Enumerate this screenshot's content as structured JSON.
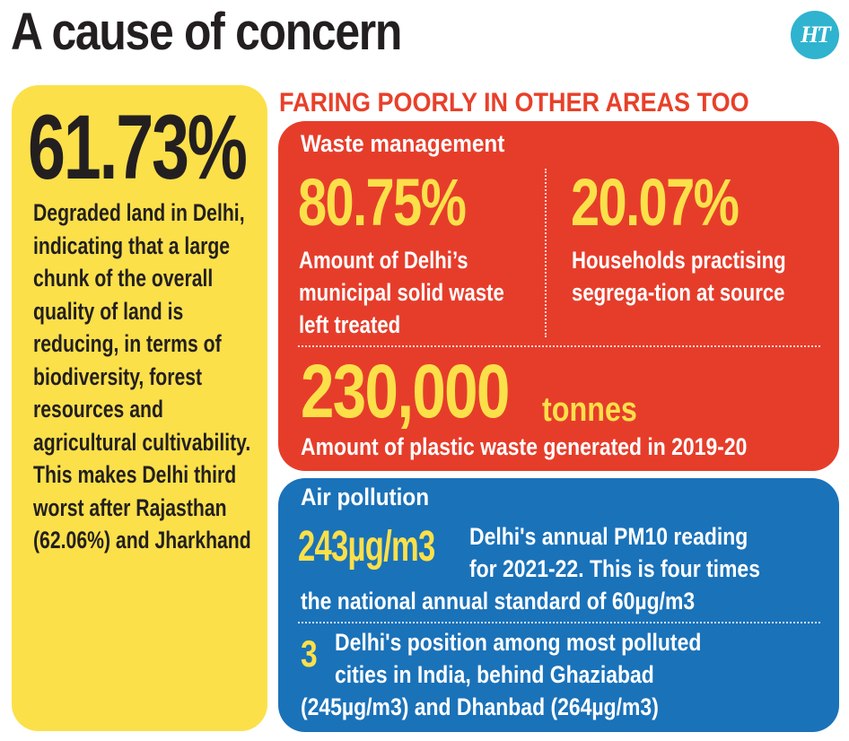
{
  "header": {
    "title": "A cause of concern",
    "logo_text": "HT"
  },
  "land": {
    "value": "61.73%",
    "description": "Degraded land in Delhi, indicating that a large chunk of the overall quality of land is reducing, in terms of biodiversity, forest resources and agricultural cultivability. This makes Delhi third worst after Rajasthan (62.06%) and Jharkhand"
  },
  "subheading": "FARING POORLY IN OTHER AREAS TOO",
  "waste": {
    "title": "Waste management",
    "stat1_value": "80.75%",
    "stat1_desc": "Amount of Delhi’s municipal solid waste left treated",
    "stat2_value": "20.07%",
    "stat2_desc": "Households practising segrega-tion at source",
    "plastic_value": "230,000",
    "plastic_unit": "tonnes",
    "plastic_desc": "Amount of plastic waste generated in 2019-20"
  },
  "air": {
    "title": "Air pollution",
    "pm10_value": "243µg/m3",
    "pm10_desc_line1": "Delhi's annual PM10 reading",
    "pm10_desc_line2": "for 2021-22. This is four times",
    "pm10_desc_line3": "the national annual standard of 60µg/m3",
    "rank_value": "3",
    "rank_desc_line1": "Delhi's position among most polluted",
    "rank_desc_line2": "cities in India, behind Ghaziabad",
    "rank_desc_line3": "(245µg/m3) and Dhanbad (264µg/m3)"
  },
  "colors": {
    "yellow_panel": "#fbe04a",
    "red_panel": "#e63d2b",
    "blue_panel": "#1a72b9",
    "subheading": "#e8402a",
    "logo": "#2fb3cf"
  }
}
